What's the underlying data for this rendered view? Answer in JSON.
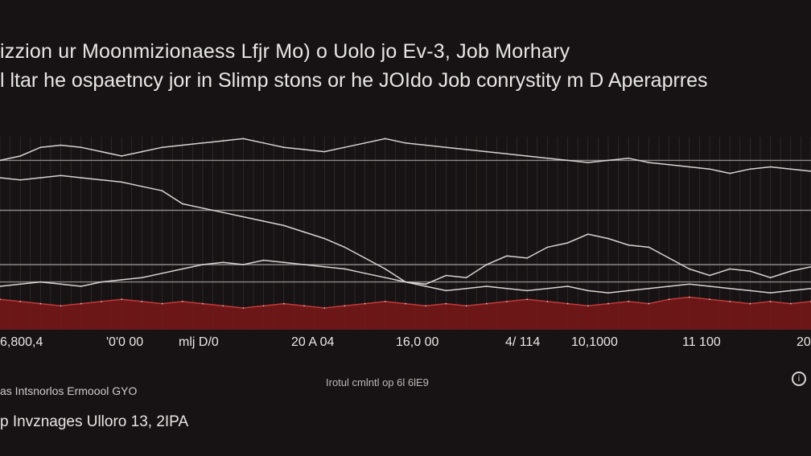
{
  "title": "izzion ur Moonmizionaess Lfjr Mo) o Uolo jo Ev-3, Job Morhary",
  "subtitle": "l ltar he ospaetncy jor in Slimp stons or he JOIdo  Job conrystity m D Aperaprres",
  "footer": {
    "note": "Irotul cmlntl op 6l 6lE9",
    "left_text": "as Intsnorlos Ermoool GYO",
    "bottom_text": "p Invznages  Ulloro 13, 2IPA"
  },
  "colors": {
    "background": "#171314",
    "line": "#d9d4d4",
    "area": "#7a1717",
    "grid": "#8d8787"
  },
  "info_icon": "info-circle-icon",
  "chart_data": {
    "type": "area",
    "title": "izzion ur Moonmizionaess Lfjr Mo) o Uolo jo Ev-3, Job Morhary",
    "subtitle": "l ltar he ospaetncy jor in Slimp stons or he JOIdo  Job conrystity m D Aperaprres",
    "xlabel": "",
    "ylabel": "",
    "x_tick_labels": [
      "6,800,4",
      "'0'0 00",
      "mlj D/0",
      "20 A 04",
      "16,0 00",
      "4/ 114",
      "10,1000",
      "11 100",
      "20"
    ],
    "grid": true,
    "ylim": [
      0,
      100
    ],
    "x": [
      0,
      1,
      2,
      3,
      4,
      5,
      6,
      7,
      8,
      9,
      10,
      11,
      12,
      13,
      14,
      15,
      16,
      17,
      18,
      19,
      20,
      21,
      22,
      23,
      24,
      25,
      26,
      27,
      28,
      29,
      30,
      31,
      32,
      33,
      34,
      35,
      36,
      37,
      38,
      39,
      40
    ],
    "series": [
      {
        "values": [
          78,
          80,
          84,
          85,
          84,
          82,
          80,
          82,
          84,
          85,
          86,
          87,
          88,
          86,
          84,
          83,
          82,
          84,
          86,
          88,
          86,
          85,
          84,
          83,
          82,
          81,
          80,
          79,
          78,
          77,
          78,
          79,
          77,
          76,
          75,
          74,
          72,
          74,
          75,
          74,
          73
        ]
      },
      {
        "values": [
          70,
          69,
          70,
          71,
          70,
          69,
          68,
          66,
          64,
          58,
          56,
          54,
          52,
          50,
          48,
          45,
          42,
          38,
          33,
          28,
          22,
          21,
          25,
          24,
          30,
          34,
          33,
          38,
          40,
          44,
          42,
          39,
          38,
          33,
          28,
          25,
          28,
          27,
          24,
          27,
          29
        ]
      },
      {
        "values": [
          20,
          21,
          22,
          21,
          20,
          22,
          23,
          24,
          26,
          28,
          30,
          31,
          30,
          32,
          31,
          30,
          29,
          28,
          26,
          24,
          22,
          20,
          18,
          19,
          20,
          19,
          18,
          19,
          20,
          18,
          17,
          18,
          19,
          20,
          21,
          20,
          19,
          18,
          17,
          18,
          19
        ]
      },
      {
        "values": [
          14,
          13,
          12,
          11,
          12,
          13,
          14,
          13,
          12,
          13,
          12,
          11,
          10,
          11,
          12,
          11,
          10,
          11,
          12,
          13,
          12,
          11,
          12,
          11,
          12,
          13,
          14,
          13,
          12,
          11,
          12,
          13,
          12,
          14,
          15,
          14,
          13,
          12,
          13,
          12,
          13
        ]
      }
    ],
    "reference_lines": [
      78,
      55,
      30,
      22
    ]
  }
}
